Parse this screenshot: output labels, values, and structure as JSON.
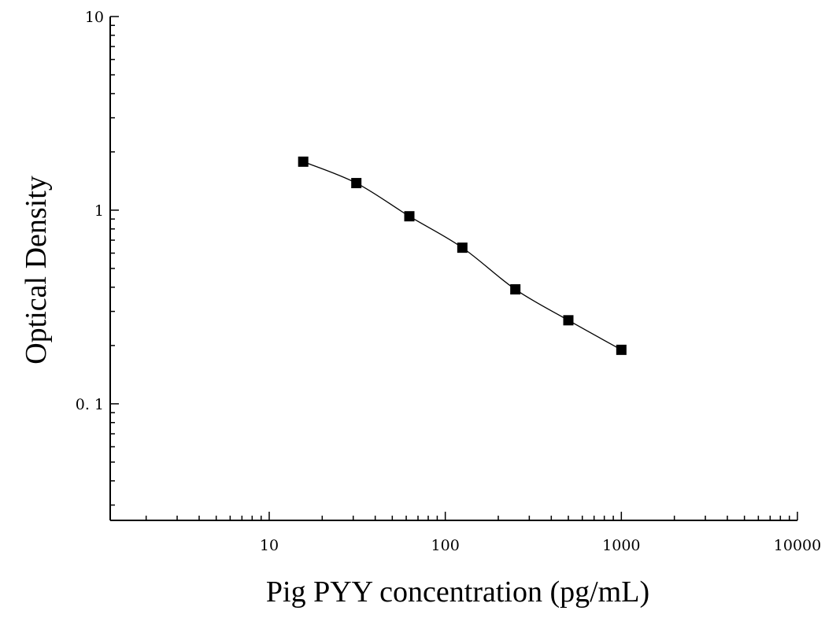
{
  "chart_data": {
    "type": "scatter",
    "title": "",
    "xlabel": "Pig PYY concentration (pg/mL)",
    "ylabel": "Optical Density",
    "x_scale": "log",
    "y_scale": "log",
    "xlim": [
      1.25,
      10000
    ],
    "ylim": [
      0.025,
      10
    ],
    "x_ticks": [
      {
        "value": 10,
        "label": "10"
      },
      {
        "value": 100,
        "label": "100"
      },
      {
        "value": 1000,
        "label": "1000"
      },
      {
        "value": 10000,
        "label": "10000"
      }
    ],
    "y_ticks": [
      {
        "value": 0.1,
        "label": "0. 1"
      },
      {
        "value": 1,
        "label": "1"
      },
      {
        "value": 10,
        "label": "10"
      }
    ],
    "grid": false,
    "legend": "none",
    "marker": "square",
    "color": "#000000",
    "series": [
      {
        "x": [
          15.6,
          31.25,
          62.5,
          125,
          250,
          500,
          1000
        ],
        "y": [
          1.78,
          1.38,
          0.93,
          0.64,
          0.39,
          0.27,
          0.19
        ]
      }
    ],
    "fit_curve": true
  }
}
